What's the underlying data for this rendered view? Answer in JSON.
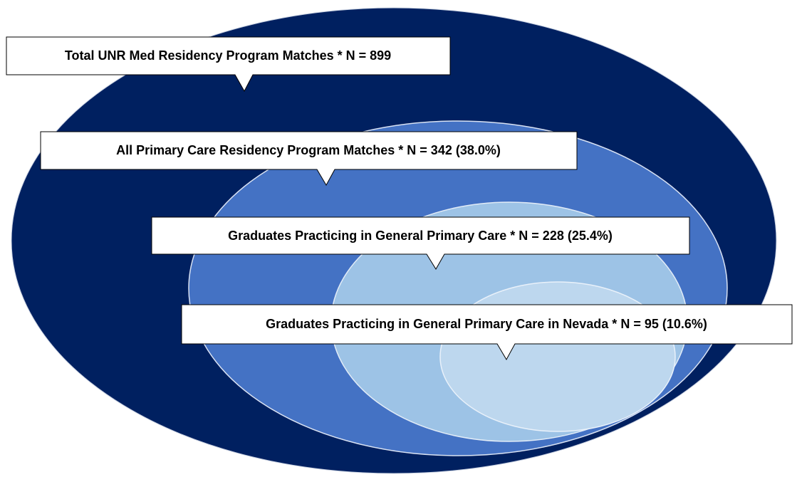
{
  "callouts": [
    {
      "label": "Total UNR Med Residency Program Matches * N = 899"
    },
    {
      "label": "All Primary Care Residency Program Matches * N = 342 (38.0%)"
    },
    {
      "label": "Graduates Practicing in General Primary Care * N = 228 (25.4%)"
    },
    {
      "label": "Graduates Practicing in General Primary Care in Nevada * N = 95 (10.6%)"
    }
  ]
}
